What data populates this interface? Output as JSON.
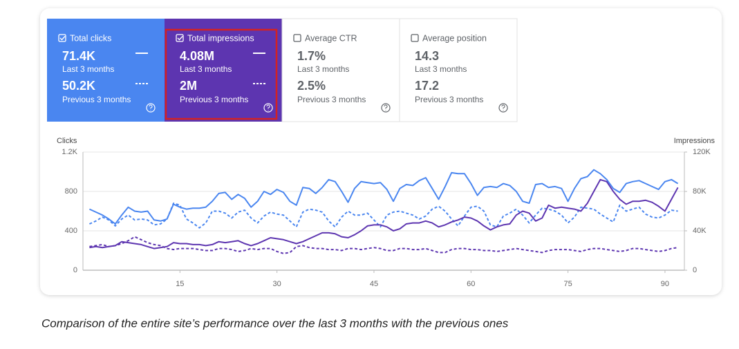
{
  "cards": [
    {
      "title": "Total clicks",
      "checked": true,
      "color": "#4a86f0",
      "value": "71.4K",
      "period": "Last 3 months",
      "previous_value": "50.2K",
      "previous_period": "Previous 3 months"
    },
    {
      "title": "Total impressions",
      "checked": true,
      "color": "#5d35b0",
      "value": "4.08M",
      "period": "Last 3 months",
      "previous_value": "2M",
      "previous_period": "Previous 3 months"
    },
    {
      "title": "Average CTR",
      "checked": false,
      "value": "1.7%",
      "period": "Last 3 months",
      "previous_value": "2.5%",
      "previous_period": "Previous 3 months"
    },
    {
      "title": "Average position",
      "checked": false,
      "value": "14.3",
      "period": "Last 3 months",
      "previous_value": "17.2",
      "previous_period": "Previous 3 months"
    }
  ],
  "chart_data": {
    "type": "line",
    "y_label": "Clicks",
    "y2_label": "Impressions",
    "grid": true,
    "x": [
      1,
      2,
      3,
      4,
      5,
      6,
      7,
      8,
      9,
      10,
      11,
      12,
      13,
      14,
      15,
      16,
      17,
      18,
      19,
      20,
      21,
      22,
      23,
      24,
      25,
      26,
      27,
      28,
      29,
      30,
      31,
      32,
      33,
      34,
      35,
      36,
      37,
      38,
      39,
      40,
      41,
      42,
      43,
      44,
      45,
      46,
      47,
      48,
      49,
      50,
      51,
      52,
      53,
      54,
      55,
      56,
      57,
      58,
      59,
      60,
      61,
      62,
      63,
      64,
      65,
      66,
      67,
      68,
      69,
      70,
      71,
      72,
      73,
      74,
      75,
      76,
      77,
      78,
      79,
      80,
      81,
      82,
      83,
      84,
      85,
      86,
      87,
      88,
      89,
      90,
      91,
      92
    ],
    "xlim": [
      0,
      93
    ],
    "xticks": [
      15,
      30,
      45,
      60,
      75,
      90
    ],
    "ylim": [
      0,
      1200
    ],
    "yticks": [
      0,
      400,
      800,
      {
        "value": 1200,
        "label": "1.2K"
      }
    ],
    "y2lim": [
      0,
      120000
    ],
    "y2ticks": [
      0,
      {
        "value": 40000,
        "label": "40K"
      },
      {
        "value": 80000,
        "label": "80K"
      },
      {
        "value": 120000,
        "label": "120K"
      }
    ],
    "series": [
      {
        "color": "#4a86f0",
        "dash": false,
        "values": [
          620,
          590,
          560,
          520,
          470,
          560,
          640,
          600,
          590,
          600,
          510,
          500,
          520,
          670,
          640,
          620,
          630,
          630,
          640,
          700,
          780,
          790,
          720,
          770,
          730,
          640,
          700,
          800,
          770,
          820,
          790,
          700,
          660,
          840,
          830,
          780,
          840,
          920,
          900,
          800,
          690,
          830,
          900,
          890,
          880,
          890,
          820,
          700,
          830,
          870,
          860,
          910,
          940,
          830,
          720,
          850,
          990,
          980,
          980,
          880,
          760,
          840,
          850,
          840,
          880,
          860,
          800,
          700,
          680,
          870,
          880,
          840,
          850,
          830,
          700,
          830,
          930,
          950,
          1020,
          980,
          920,
          830,
          790,
          880,
          900,
          910,
          880,
          850,
          820,
          900,
          920,
          880
        ]
      },
      {
        "color": "#4a86f0",
        "dash": true,
        "values": [
          470,
          500,
          540,
          510,
          450,
          520,
          560,
          510,
          520,
          510,
          460,
          470,
          520,
          680,
          660,
          520,
          480,
          430,
          480,
          600,
          600,
          580,
          530,
          590,
          610,
          530,
          480,
          550,
          590,
          570,
          560,
          500,
          440,
          590,
          620,
          610,
          590,
          500,
          440,
          540,
          600,
          560,
          560,
          580,
          510,
          440,
          560,
          590,
          600,
          580,
          560,
          520,
          550,
          620,
          650,
          600,
          520,
          450,
          550,
          640,
          650,
          600,
          460,
          440,
          550,
          580,
          620,
          560,
          480,
          560,
          630,
          620,
          600,
          560,
          480,
          540,
          640,
          630,
          620,
          570,
          530,
          490,
          660,
          600,
          620,
          640,
          570,
          540,
          530,
          560,
          610,
          600
        ]
      },
      {
        "color": "#5d35b0",
        "dash": false,
        "axis": "y2",
        "values": [
          23000,
          24000,
          23000,
          24000,
          25000,
          29000,
          28000,
          27000,
          26000,
          24000,
          22000,
          23000,
          24000,
          28000,
          27000,
          27000,
          26000,
          26000,
          25000,
          26000,
          29000,
          28000,
          29000,
          30000,
          27000,
          25000,
          27000,
          30000,
          33000,
          32000,
          31000,
          29000,
          27000,
          29000,
          32000,
          35000,
          38000,
          38000,
          37000,
          34000,
          33000,
          36000,
          40000,
          45000,
          46000,
          46000,
          44000,
          40000,
          42000,
          47000,
          48000,
          48000,
          50000,
          48000,
          44000,
          46000,
          49000,
          51000,
          54000,
          53000,
          50000,
          45000,
          41000,
          44000,
          46000,
          47000,
          56000,
          60000,
          58000,
          50000,
          53000,
          66000,
          63000,
          64000,
          63000,
          62000,
          60000,
          68000,
          80000,
          92000,
          90000,
          80000,
          72000,
          67000,
          70000,
          70000,
          71000,
          69000,
          65000,
          60000,
          72000,
          84000
        ]
      },
      {
        "color": "#5d35b0",
        "dash": true,
        "axis": "y2",
        "values": [
          24000,
          25000,
          26000,
          24000,
          25000,
          27000,
          30000,
          34000,
          31000,
          28000,
          26000,
          25000,
          22000,
          21000,
          22000,
          22000,
          22000,
          21000,
          20000,
          20000,
          22000,
          22000,
          21000,
          19000,
          20000,
          22000,
          21000,
          22000,
          22000,
          19000,
          17000,
          18000,
          24000,
          25000,
          23000,
          22000,
          22000,
          21000,
          21000,
          20000,
          22000,
          22000,
          21000,
          22000,
          23000,
          22000,
          20000,
          20000,
          22000,
          22000,
          21000,
          21000,
          22000,
          20000,
          18000,
          18000,
          21000,
          22000,
          22000,
          21000,
          21000,
          20000,
          20000,
          19000,
          20000,
          21000,
          22000,
          21000,
          20000,
          19000,
          18000,
          20000,
          21000,
          21000,
          21000,
          20000,
          19000,
          21000,
          22000,
          22000,
          21000,
          20000,
          19000,
          20000,
          22000,
          22000,
          21000,
          20000,
          19000,
          20000,
          22000,
          23000
        ]
      }
    ]
  },
  "caption": "Comparison of the entire site’s performance over the last 3 months with the previous ones"
}
